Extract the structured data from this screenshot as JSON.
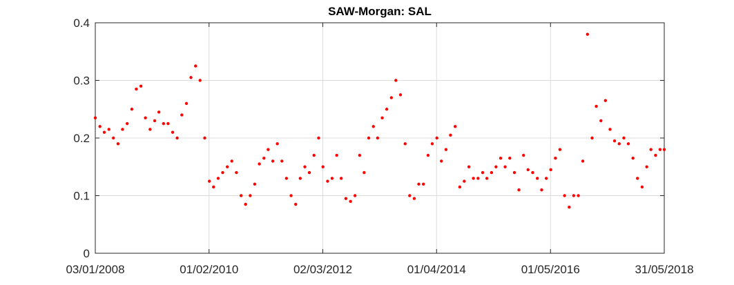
{
  "chart_data": {
    "type": "scatter",
    "title": "SAW-Morgan: SAL",
    "x": [
      "03/01/2008",
      "03/02/2008",
      "03/03/2008",
      "03/04/2008",
      "03/05/2008",
      "03/06/2008",
      "03/07/2008",
      "03/08/2008",
      "03/09/2008",
      "03/10/2008",
      "03/11/2008",
      "03/12/2008",
      "03/01/2009",
      "03/02/2009",
      "03/03/2009",
      "03/04/2009",
      "03/05/2009",
      "03/06/2009",
      "03/07/2009",
      "03/08/2009",
      "03/09/2009",
      "03/10/2009",
      "03/11/2009",
      "03/12/2009",
      "03/01/2010",
      "03/02/2010",
      "03/03/2010",
      "03/04/2010",
      "03/05/2010",
      "03/06/2010",
      "03/07/2010",
      "03/08/2010",
      "03/09/2010",
      "03/10/2010",
      "03/11/2010",
      "03/12/2010",
      "03/01/2011",
      "03/02/2011",
      "03/03/2011",
      "03/04/2011",
      "03/05/2011",
      "03/06/2011",
      "03/07/2011",
      "03/08/2011",
      "03/09/2011",
      "03/10/2011",
      "03/11/2011",
      "03/12/2011",
      "03/01/2012",
      "03/02/2012",
      "03/03/2012",
      "03/04/2012",
      "03/05/2012",
      "03/06/2012",
      "03/07/2012",
      "03/08/2012",
      "03/09/2012",
      "03/10/2012",
      "03/11/2012",
      "03/12/2012",
      "03/01/2013",
      "03/02/2013",
      "03/03/2013",
      "03/04/2013",
      "03/05/2013",
      "03/06/2013",
      "03/07/2013",
      "03/08/2013",
      "03/09/2013",
      "03/10/2013",
      "03/11/2013",
      "03/12/2013",
      "03/01/2014",
      "03/02/2014",
      "03/03/2014",
      "03/04/2014",
      "03/05/2014",
      "03/06/2014",
      "03/07/2014",
      "03/08/2014",
      "03/09/2014",
      "03/10/2014",
      "03/11/2014",
      "03/12/2014",
      "03/01/2015",
      "03/02/2015",
      "03/03/2015",
      "03/04/2015",
      "03/05/2015",
      "03/06/2015",
      "03/07/2015",
      "03/08/2015",
      "03/09/2015",
      "03/10/2015",
      "03/11/2015",
      "03/12/2015",
      "03/01/2016",
      "03/02/2016",
      "03/03/2016",
      "03/04/2016",
      "03/05/2016",
      "03/06/2016",
      "03/07/2016",
      "03/08/2016",
      "03/09/2016",
      "03/10/2016",
      "03/11/2016",
      "03/12/2016",
      "03/01/2017",
      "03/02/2017",
      "03/03/2017",
      "03/04/2017",
      "03/05/2017",
      "03/06/2017",
      "03/07/2017",
      "03/08/2017",
      "03/09/2017",
      "03/10/2017",
      "03/11/2017",
      "03/12/2017",
      "03/01/2018",
      "03/02/2018",
      "03/03/2018",
      "03/04/2018",
      "03/05/2018",
      "31/05/2018"
    ],
    "series": [
      {
        "color": "#ff0000",
        "values": [
          0.235,
          0.22,
          0.21,
          0.215,
          0.2,
          0.19,
          0.215,
          0.225,
          0.25,
          0.285,
          0.29,
          0.235,
          0.215,
          0.23,
          0.245,
          0.225,
          0.225,
          0.21,
          0.2,
          0.24,
          0.26,
          0.305,
          0.325,
          0.3,
          0.2,
          0.125,
          0.115,
          0.13,
          0.14,
          0.15,
          0.16,
          0.14,
          0.1,
          0.085,
          0.1,
          0.12,
          0.155,
          0.165,
          0.18,
          0.16,
          0.19,
          0.16,
          0.13,
          0.1,
          0.085,
          0.13,
          0.15,
          0.14,
          0.17,
          0.2,
          0.15,
          0.125,
          0.13,
          0.17,
          0.13,
          0.095,
          0.09,
          0.1,
          0.17,
          0.14,
          0.2,
          0.22,
          0.2,
          0.235,
          0.25,
          0.27,
          0.3,
          0.275,
          0.19,
          0.1,
          0.095,
          0.12,
          0.12,
          0.17,
          0.19,
          0.2,
          0.16,
          0.18,
          0.205,
          0.22,
          0.115,
          0.125,
          0.15,
          0.13,
          0.13,
          0.14,
          0.13,
          0.14,
          0.15,
          0.165,
          0.15,
          0.165,
          0.14,
          0.11,
          0.17,
          0.145,
          0.14,
          0.13,
          0.11,
          0.13,
          0.145,
          0.165,
          0.18,
          0.1,
          0.08,
          0.1,
          0.1,
          0.16,
          0.38,
          0.2,
          0.255,
          0.23,
          0.265,
          0.215,
          0.195,
          0.19,
          0.2,
          0.19,
          0.165,
          0.13,
          0.115,
          0.15,
          0.18,
          0.17,
          0.18,
          0.18
        ]
      }
    ],
    "xlim": [
      "03/01/2008",
      "31/05/2018"
    ],
    "xticks": [
      "03/01/2008",
      "01/02/2010",
      "02/03/2012",
      "01/04/2014",
      "01/05/2016",
      "31/05/2018"
    ],
    "ylim": [
      0,
      0.4
    ],
    "yticks": [
      0,
      0.1,
      0.2,
      0.3,
      0.4
    ],
    "grid": true
  }
}
